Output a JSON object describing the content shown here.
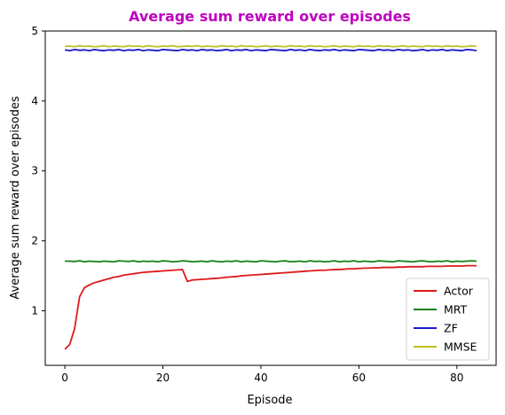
{
  "chart_data": {
    "type": "line",
    "title": "Average sum reward over episodes",
    "title_color": "#bf00bf",
    "xlabel": "Episode",
    "ylabel": "Average sum reward over episodes",
    "xlim": [
      -4,
      88
    ],
    "ylim": [
      0.22,
      5.0
    ],
    "xticks": [
      0,
      20,
      40,
      60,
      80
    ],
    "yticks": [
      1,
      2,
      3,
      4,
      5
    ],
    "grid": false,
    "legend_position": "lower-right",
    "x": [
      0,
      1,
      2,
      3,
      4,
      5,
      6,
      7,
      8,
      9,
      10,
      11,
      12,
      13,
      14,
      15,
      16,
      17,
      18,
      19,
      20,
      21,
      22,
      23,
      24,
      25,
      26,
      27,
      28,
      29,
      30,
      31,
      32,
      33,
      34,
      35,
      36,
      37,
      38,
      39,
      40,
      41,
      42,
      43,
      44,
      45,
      46,
      47,
      48,
      49,
      50,
      51,
      52,
      53,
      54,
      55,
      56,
      57,
      58,
      59,
      60,
      61,
      62,
      63,
      64,
      65,
      66,
      67,
      68,
      69,
      70,
      71,
      72,
      73,
      74,
      75,
      76,
      77,
      78,
      79,
      80,
      81,
      82,
      83,
      84
    ],
    "series": [
      {
        "name": "Actor",
        "color": "#dd1a1a",
        "values": [
          0.45,
          0.52,
          0.75,
          1.2,
          1.33,
          1.37,
          1.4,
          1.42,
          1.44,
          1.46,
          1.48,
          1.49,
          1.51,
          1.52,
          1.53,
          1.54,
          1.55,
          1.555,
          1.56,
          1.565,
          1.57,
          1.575,
          1.58,
          1.585,
          1.59,
          1.42,
          1.44,
          1.445,
          1.45,
          1.455,
          1.46,
          1.465,
          1.47,
          1.48,
          1.485,
          1.49,
          1.5,
          1.505,
          1.51,
          1.515,
          1.52,
          1.525,
          1.53,
          1.535,
          1.54,
          1.545,
          1.55,
          1.555,
          1.56,
          1.565,
          1.57,
          1.575,
          1.58,
          1.58,
          1.585,
          1.59,
          1.59,
          1.595,
          1.6,
          1.6,
          1.605,
          1.61,
          1.61,
          1.615,
          1.615,
          1.62,
          1.62,
          1.62,
          1.625,
          1.625,
          1.63,
          1.63,
          1.63,
          1.63,
          1.635,
          1.635,
          1.635,
          1.635,
          1.64,
          1.64,
          1.64,
          1.64,
          1.645,
          1.645,
          1.645
        ]
      },
      {
        "name": "MRT",
        "color": "#148014",
        "values": [
          1.71,
          1.71,
          1.705,
          1.715,
          1.7,
          1.71,
          1.705,
          1.7,
          1.71,
          1.705,
          1.7,
          1.715,
          1.71,
          1.705,
          1.715,
          1.7,
          1.71,
          1.705,
          1.71,
          1.7,
          1.715,
          1.71,
          1.7,
          1.705,
          1.715,
          1.71,
          1.7,
          1.705,
          1.71,
          1.7,
          1.715,
          1.705,
          1.7,
          1.71,
          1.705,
          1.715,
          1.7,
          1.71,
          1.705,
          1.7,
          1.715,
          1.71,
          1.705,
          1.7,
          1.71,
          1.715,
          1.7,
          1.705,
          1.71,
          1.7,
          1.715,
          1.705,
          1.71,
          1.7,
          1.705,
          1.715,
          1.7,
          1.71,
          1.705,
          1.715,
          1.7,
          1.71,
          1.705,
          1.7,
          1.715,
          1.71,
          1.705,
          1.7,
          1.715,
          1.71,
          1.705,
          1.7,
          1.71,
          1.715,
          1.705,
          1.7,
          1.71,
          1.705,
          1.715,
          1.7,
          1.71,
          1.705,
          1.71,
          1.715,
          1.71
        ]
      },
      {
        "name": "ZF",
        "color": "#1a1acc",
        "values": [
          4.73,
          4.72,
          4.735,
          4.725,
          4.73,
          4.72,
          4.735,
          4.725,
          4.72,
          4.73,
          4.725,
          4.735,
          4.72,
          4.73,
          4.725,
          4.735,
          4.72,
          4.73,
          4.725,
          4.72,
          4.735,
          4.73,
          4.725,
          4.72,
          4.735,
          4.725,
          4.73,
          4.72,
          4.735,
          4.725,
          4.73,
          4.72,
          4.725,
          4.735,
          4.72,
          4.73,
          4.725,
          4.735,
          4.72,
          4.73,
          4.725,
          4.72,
          4.735,
          4.73,
          4.725,
          4.72,
          4.735,
          4.725,
          4.73,
          4.72,
          4.735,
          4.725,
          4.72,
          4.73,
          4.725,
          4.735,
          4.72,
          4.73,
          4.725,
          4.72,
          4.735,
          4.73,
          4.725,
          4.72,
          4.735,
          4.725,
          4.73,
          4.72,
          4.735,
          4.725,
          4.73,
          4.72,
          4.725,
          4.735,
          4.72,
          4.73,
          4.725,
          4.735,
          4.72,
          4.73,
          4.725,
          4.72,
          4.735,
          4.73,
          4.72
        ]
      },
      {
        "name": "MMSE",
        "color": "#bfbf26",
        "values": [
          4.78,
          4.785,
          4.775,
          4.79,
          4.78,
          4.785,
          4.775,
          4.78,
          4.79,
          4.775,
          4.785,
          4.78,
          4.775,
          4.79,
          4.78,
          4.785,
          4.775,
          4.79,
          4.78,
          4.775,
          4.785,
          4.78,
          4.79,
          4.775,
          4.78,
          4.785,
          4.78,
          4.79,
          4.775,
          4.785,
          4.78,
          4.775,
          4.79,
          4.78,
          4.785,
          4.775,
          4.79,
          4.78,
          4.785,
          4.775,
          4.78,
          4.79,
          4.775,
          4.785,
          4.78,
          4.775,
          4.79,
          4.78,
          4.785,
          4.775,
          4.79,
          4.78,
          4.785,
          4.775,
          4.78,
          4.79,
          4.775,
          4.785,
          4.78,
          4.775,
          4.79,
          4.78,
          4.785,
          4.775,
          4.79,
          4.78,
          4.785,
          4.775,
          4.78,
          4.79,
          4.775,
          4.785,
          4.78,
          4.775,
          4.79,
          4.78,
          4.785,
          4.775,
          4.79,
          4.78,
          4.785,
          4.775,
          4.78,
          4.79,
          4.78
        ]
      }
    ]
  }
}
